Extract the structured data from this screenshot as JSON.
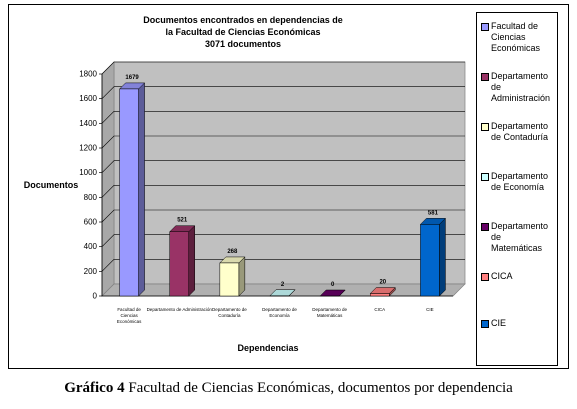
{
  "chart_data": {
    "type": "bar",
    "title_lines": [
      "Documentos encontrados en dependencias de",
      "la Facultad de Ciencias Económicas",
      "3071 documentos"
    ],
    "xlabel": "Dependencias",
    "ylabel": "Documentos",
    "ylim": [
      0,
      1800
    ],
    "yticks": [
      "0",
      "200",
      "400",
      "600",
      "800",
      "1000",
      "1200",
      "1400",
      "1600",
      "1800"
    ],
    "grid": true,
    "legend_position": "right",
    "categories": [
      [
        "Facultad de",
        "Ciencias",
        "Económicas"
      ],
      [
        "Departamento de Administración"
      ],
      [
        "Departamento de",
        "Contaduría"
      ],
      [
        "Departamento de",
        "Economía"
      ],
      [
        "Departamento de",
        "Matemáticas"
      ],
      [
        "CICA"
      ],
      [
        "CIE"
      ]
    ],
    "values": [
      1679,
      521,
      268,
      2,
      0,
      20,
      581
    ],
    "value_labels": [
      "1679",
      "521",
      "268",
      "2",
      "0",
      "20",
      "581"
    ],
    "colors": [
      "#9999ff",
      "#993366",
      "#ffffcc",
      "#ccffff",
      "#660066",
      "#ff8080",
      "#0066cc"
    ],
    "legend": [
      [
        "Facultad de",
        "Ciencias",
        "Económicas"
      ],
      [
        "Departamento",
        "de",
        "Administración"
      ],
      [
        "Departamento",
        "de Contaduría"
      ],
      [
        "Departamento",
        "de Economía"
      ],
      [
        "Departamento",
        "de",
        "Matemáticas"
      ],
      [
        "CICA"
      ],
      [
        "CIE"
      ]
    ]
  },
  "caption": {
    "label": "Gráfico 4",
    "text": " Facultad de Ciencias Económicas, documentos por dependencia"
  }
}
